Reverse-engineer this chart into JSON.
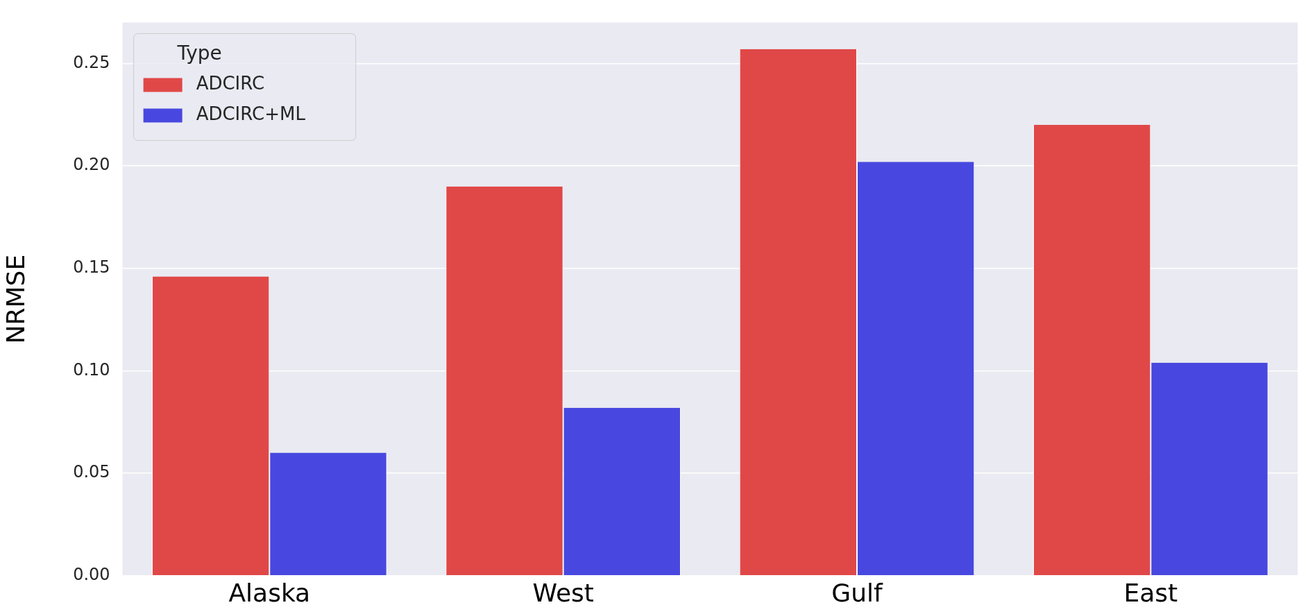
{
  "chart_data": {
    "type": "bar",
    "ylabel": "NRMSE",
    "legend_title": "Type",
    "categories": [
      "Alaska",
      "West",
      "Gulf",
      "East"
    ],
    "series": [
      {
        "name": "ADCIRC",
        "color": "#e04848",
        "values": [
          0.146,
          0.19,
          0.257,
          0.22
        ]
      },
      {
        "name": "ADCIRC+ML",
        "color": "#4848e0",
        "values": [
          0.06,
          0.082,
          0.202,
          0.104
        ]
      }
    ],
    "ylim": [
      0,
      0.27
    ],
    "yticks": [
      {
        "value": 0,
        "label": "0.00"
      },
      {
        "value": 0.05,
        "label": "0.05"
      },
      {
        "value": 0.1,
        "label": "0.10"
      },
      {
        "value": 0.15,
        "label": "0.15"
      },
      {
        "value": 0.2,
        "label": "0.20"
      },
      {
        "value": 0.25,
        "label": "0.25"
      }
    ],
    "grid": "y",
    "legend": "top left"
  }
}
